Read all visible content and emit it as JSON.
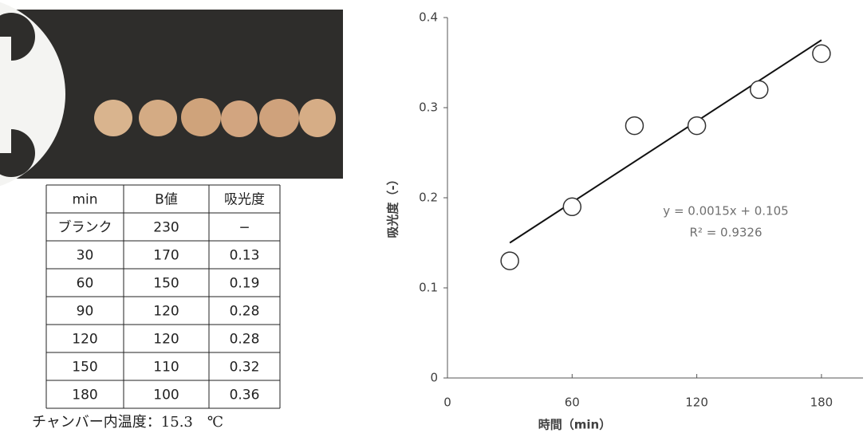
{
  "table": {
    "header": [
      "min",
      "B値",
      "吸光度"
    ],
    "rows": [
      [
        "ブランク",
        "230",
        "−"
      ],
      [
        "30",
        "170",
        "0.13"
      ],
      [
        "60",
        "150",
        "0.19"
      ],
      [
        "90",
        "120",
        "0.28"
      ],
      [
        "120",
        "120",
        "0.28"
      ],
      [
        "150",
        "110",
        "0.32"
      ],
      [
        "180",
        "100",
        "0.36"
      ]
    ]
  },
  "caption": "チャンバー内温度：15.3　℃",
  "chart_data": {
    "type": "scatter",
    "xlabel": "時間（min）",
    "ylabel": "吸光度（-）",
    "x": [
      30,
      60,
      90,
      120,
      150,
      180
    ],
    "values": [
      0.13,
      0.19,
      0.28,
      0.28,
      0.32,
      0.36
    ],
    "color": "#333333",
    "xlim": [
      0,
      200
    ],
    "xticks": [
      0,
      60,
      120,
      180
    ],
    "ylim": [
      0,
      0.4
    ],
    "yticks": [
      0,
      0.1,
      0.2,
      0.3,
      0.4
    ],
    "grid": false,
    "trendline": {
      "slope": 0.0015,
      "intercept": 0.105,
      "color": "#111111",
      "label": "y = 0.0015x + 0.105",
      "r2_label": "R² = 0.9326"
    }
  }
}
